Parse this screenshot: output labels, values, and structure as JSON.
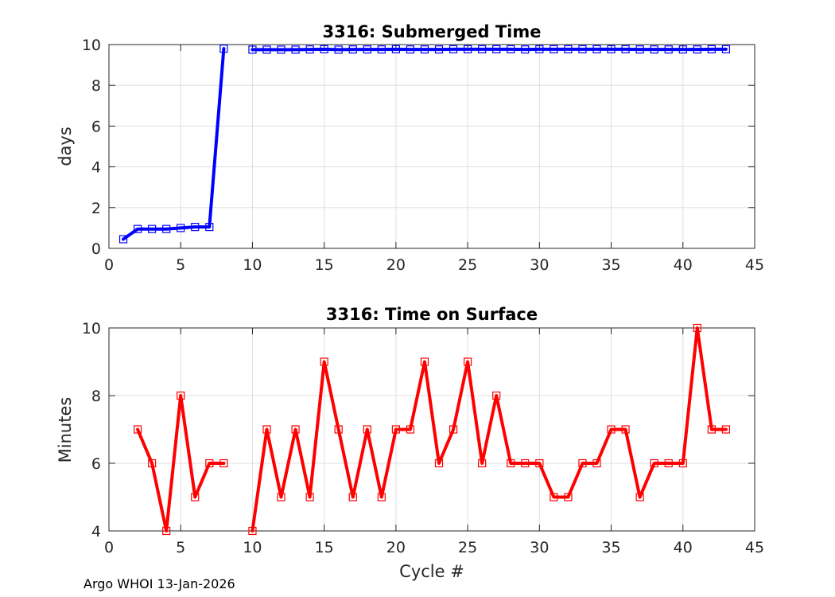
{
  "footer": "Argo WHOI 13-Jan-2026",
  "chart_data": [
    {
      "type": "line",
      "title": "3316: Submerged Time",
      "xlabel": "",
      "ylabel": "days",
      "xlim": [
        0,
        45
      ],
      "ylim": [
        0,
        10
      ],
      "xticks": [
        0,
        5,
        10,
        15,
        20,
        25,
        30,
        35,
        40,
        45
      ],
      "yticks": [
        0,
        2,
        4,
        6,
        8,
        10
      ],
      "grid": true,
      "color": "#0000ff",
      "marker": "square",
      "series": [
        {
          "segments": [
            [
              [
                1,
                0.45
              ],
              [
                2,
                0.95
              ],
              [
                3,
                0.95
              ],
              [
                4,
                0.95
              ],
              [
                5,
                1.0
              ],
              [
                6,
                1.05
              ],
              [
                7,
                1.05
              ],
              [
                8,
                9.8
              ]
            ],
            [
              [
                10,
                9.75
              ],
              [
                11,
                9.75
              ],
              [
                12,
                9.75
              ],
              [
                13,
                9.75
              ],
              [
                14,
                9.76
              ],
              [
                15,
                9.77
              ],
              [
                16,
                9.75
              ],
              [
                17,
                9.76
              ],
              [
                18,
                9.76
              ],
              [
                19,
                9.76
              ],
              [
                20,
                9.77
              ],
              [
                21,
                9.76
              ],
              [
                22,
                9.76
              ],
              [
                23,
                9.76
              ],
              [
                24,
                9.77
              ],
              [
                25,
                9.77
              ],
              [
                26,
                9.77
              ],
              [
                27,
                9.77
              ],
              [
                28,
                9.77
              ],
              [
                29,
                9.76
              ],
              [
                30,
                9.77
              ],
              [
                31,
                9.77
              ],
              [
                32,
                9.77
              ],
              [
                33,
                9.77
              ],
              [
                34,
                9.77
              ],
              [
                35,
                9.77
              ],
              [
                36,
                9.77
              ],
              [
                37,
                9.76
              ],
              [
                38,
                9.76
              ],
              [
                39,
                9.76
              ],
              [
                40,
                9.76
              ],
              [
                41,
                9.76
              ],
              [
                42,
                9.77
              ],
              [
                43,
                9.77
              ]
            ]
          ]
        }
      ]
    },
    {
      "type": "line",
      "title": "3316: Time on Surface",
      "xlabel": "Cycle #",
      "ylabel": "Minutes",
      "xlim": [
        0,
        45
      ],
      "ylim": [
        4,
        10
      ],
      "xticks": [
        0,
        5,
        10,
        15,
        20,
        25,
        30,
        35,
        40,
        45
      ],
      "yticks": [
        4,
        6,
        8,
        10
      ],
      "grid": true,
      "color": "#ff0000",
      "marker": "square",
      "series": [
        {
          "segments": [
            [
              [
                2,
                7
              ],
              [
                3,
                6
              ],
              [
                4,
                4
              ],
              [
                5,
                8
              ],
              [
                6,
                5
              ],
              [
                7,
                6
              ],
              [
                8,
                6
              ]
            ],
            [
              [
                10,
                4
              ],
              [
                11,
                7
              ],
              [
                12,
                5
              ],
              [
                13,
                7
              ],
              [
                14,
                5
              ],
              [
                15,
                9
              ],
              [
                16,
                7
              ],
              [
                17,
                5
              ],
              [
                18,
                7
              ],
              [
                19,
                5
              ],
              [
                20,
                7
              ],
              [
                21,
                7
              ],
              [
                22,
                9
              ],
              [
                23,
                6
              ],
              [
                24,
                7
              ],
              [
                25,
                9
              ],
              [
                26,
                6
              ],
              [
                27,
                8
              ],
              [
                28,
                6
              ],
              [
                29,
                6
              ],
              [
                30,
                6
              ],
              [
                31,
                5
              ],
              [
                32,
                5
              ],
              [
                33,
                6
              ],
              [
                34,
                6
              ],
              [
                35,
                7
              ],
              [
                36,
                7
              ],
              [
                37,
                5
              ],
              [
                38,
                6
              ],
              [
                39,
                6
              ],
              [
                40,
                6
              ],
              [
                41,
                10
              ],
              [
                42,
                7
              ],
              [
                43,
                7
              ]
            ]
          ]
        }
      ]
    }
  ]
}
